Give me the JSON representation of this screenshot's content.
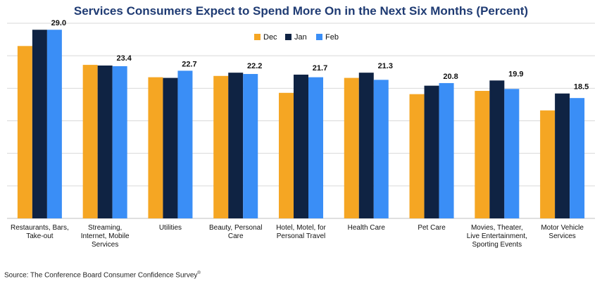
{
  "chart_data": {
    "type": "bar",
    "title": "Services Consumers Expect to Spend More On in the Next Six Months (Percent)",
    "categories": [
      [
        "Restaurants, Bars,",
        "Take-out"
      ],
      [
        "Streaming,",
        "Internet, Mobile",
        "Services"
      ],
      [
        "Utilities"
      ],
      [
        "Beauty, Personal",
        "Care"
      ],
      [
        "Hotel, Motel, for",
        "Personal Travel"
      ],
      [
        "Health Care"
      ],
      [
        "Pet Care"
      ],
      [
        "Movies, Theater,",
        "Live Entertainment,",
        "Sporting Events"
      ],
      [
        "Motor Vehicle",
        "Services"
      ]
    ],
    "series": [
      {
        "name": "Dec",
        "color": "#f5a623",
        "values": [
          26.5,
          23.6,
          21.7,
          21.9,
          19.3,
          21.6,
          19.1,
          19.6,
          16.6
        ]
      },
      {
        "name": "Jan",
        "color": "#0f2343",
        "values": [
          29.0,
          23.5,
          21.6,
          22.4,
          22.1,
          22.4,
          20.4,
          21.2,
          19.2
        ]
      },
      {
        "name": "Feb",
        "color": "#3a8ef6",
        "values": [
          29.0,
          23.4,
          22.7,
          22.2,
          21.7,
          21.3,
          20.8,
          19.9,
          18.5
        ]
      }
    ],
    "data_labels": [
      "29.0",
      "23.4",
      "22.7",
      "22.2",
      "21.7",
      "21.3",
      "20.8",
      "19.9",
      "18.5"
    ],
    "ylim": [
      0,
      30
    ],
    "gridlines": 6,
    "legend_position": "top-center",
    "xlabel": "",
    "ylabel": ""
  },
  "source": "Source: The Conference Board Consumer Confidence Survey",
  "source_mark": "®"
}
